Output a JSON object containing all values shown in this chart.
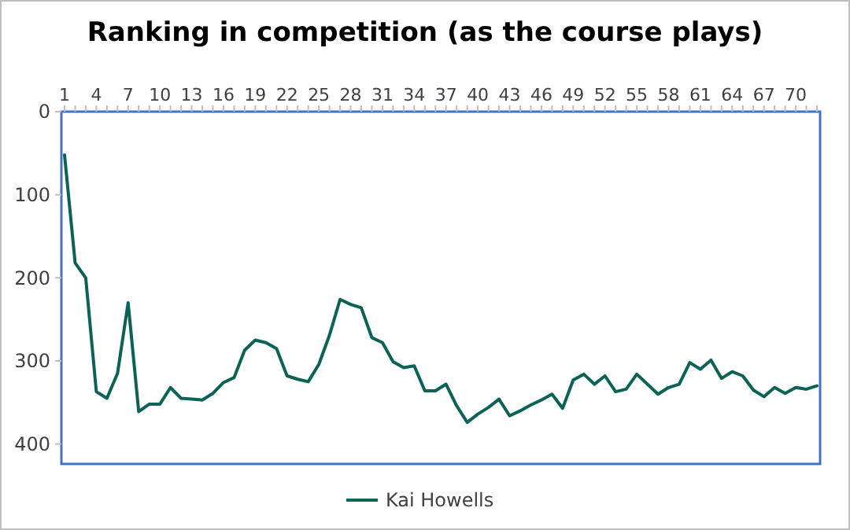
{
  "chart_data": {
    "type": "line",
    "title": "Ranking in competition (as the course plays)",
    "categories": [
      "1",
      null,
      null,
      "4",
      null,
      null,
      "7",
      null,
      null,
      "10",
      null,
      null,
      "13",
      null,
      null,
      "16",
      null,
      null,
      "19",
      null,
      null,
      "22",
      null,
      null,
      "25",
      null,
      null,
      "28",
      null,
      null,
      "31",
      null,
      null,
      "34",
      null,
      null,
      "37",
      null,
      null,
      "40",
      null,
      null,
      "43",
      null,
      null,
      "46",
      null,
      null,
      "49",
      null,
      null,
      "52",
      null,
      null,
      "55",
      null,
      null,
      "58",
      null,
      null,
      "61",
      null,
      null,
      "64",
      null,
      null,
      "67",
      null,
      null,
      "70",
      null,
      null
    ],
    "series": [
      {
        "name": "Kai Howells",
        "color": "#0b6358",
        "values": [
          52,
          182,
          200,
          337,
          345,
          315,
          230,
          361,
          352,
          352,
          332,
          345,
          346,
          347,
          339,
          326,
          320,
          287,
          275,
          278,
          285,
          318,
          322,
          325,
          304,
          269,
          226,
          232,
          236,
          272,
          278,
          301,
          308,
          306,
          336,
          336,
          328,
          354,
          374,
          364,
          356,
          346,
          366,
          360,
          353,
          347,
          340,
          357,
          323,
          316,
          328,
          318,
          337,
          334,
          316,
          328,
          340,
          332,
          328,
          302,
          310,
          299,
          321,
          313,
          318,
          335,
          343,
          332,
          339,
          332,
          334,
          330
        ]
      }
    ],
    "ylim": [
      424,
      0
    ],
    "yticks": [
      0,
      100,
      200,
      300,
      400
    ],
    "grid": false,
    "legend": "bottom",
    "marker": "none",
    "line_style": "solid"
  }
}
